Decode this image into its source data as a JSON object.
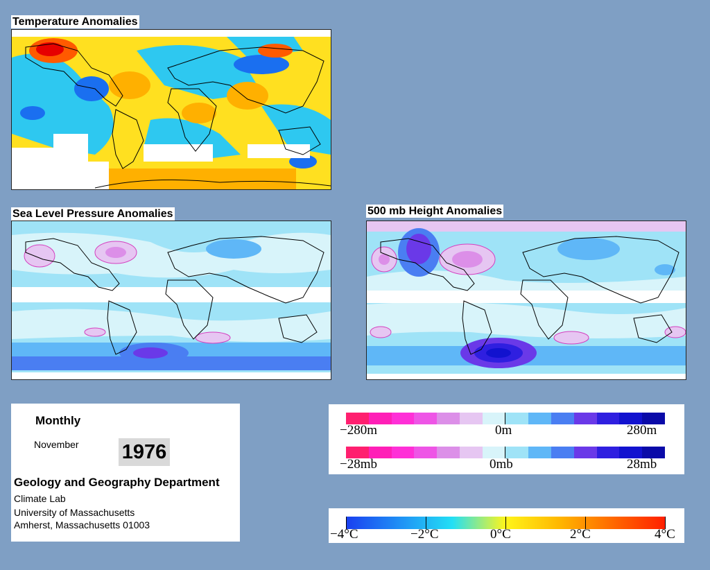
{
  "maps": {
    "temperature": {
      "title": "Temperature Anomalies"
    },
    "slp": {
      "title": "Sea Level Pressure Anomalies"
    },
    "height500": {
      "title": "500 mb Height Anomalies"
    }
  },
  "info": {
    "period": "Monthly",
    "month": "November",
    "year": "1976",
    "department": "Geology and Geography Department",
    "lab": "Climate Lab",
    "university": "University of Massachusetts",
    "address": "Amherst, Massachusetts 01003"
  },
  "height_legend": {
    "min_label": "−280m",
    "mid_label": "0m",
    "max_label": "280m",
    "colors": [
      "#ff1f6f",
      "#ff1fb7",
      "#ff2fd7",
      "#ee55e6",
      "#dc8fe8",
      "#e6c6f2",
      "#d8f4fa",
      "#9fe3f7",
      "#5fb7f7",
      "#4a7ef2",
      "#6a39e8",
      "#2f1fe0",
      "#1212cf",
      "#0a0aa8"
    ]
  },
  "pressure_legend": {
    "min_label": "−28mb",
    "mid_label": "0mb",
    "max_label": "28mb",
    "colors": [
      "#ff1f6f",
      "#ff1fb7",
      "#ff2fd7",
      "#ee55e6",
      "#dc8fe8",
      "#e6c6f2",
      "#d8f4fa",
      "#9fe3f7",
      "#5fb7f7",
      "#4a7ef2",
      "#6a39e8",
      "#2f1fe0",
      "#1212cf",
      "#0a0aa8"
    ]
  },
  "temperature_legend": {
    "labels": [
      "−4°C",
      "−2°C",
      "0°C",
      "2°C",
      "4°C"
    ],
    "stops": [
      "#1a3ff0",
      "#1f8ff5",
      "#23dff5",
      "#fff51a",
      "#ffb800",
      "#ff6a00",
      "#ff2000"
    ]
  }
}
